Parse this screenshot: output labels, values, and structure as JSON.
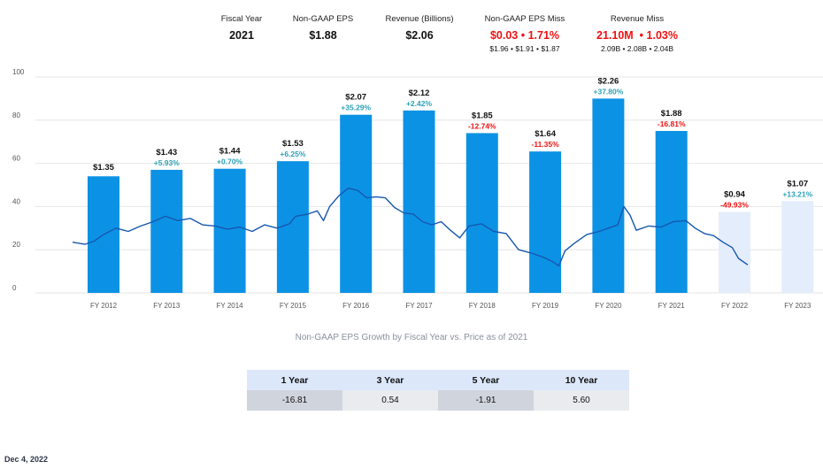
{
  "header": {
    "fiscal_year": {
      "label": "Fiscal Year",
      "value": "2021"
    },
    "eps": {
      "label": "Non-GAAP EPS",
      "value": "$1.88"
    },
    "revenue": {
      "label": "Revenue (Billions)",
      "value": "$2.06"
    },
    "eps_miss": {
      "label": "Non-GAAP EPS Miss",
      "value": "$0.03 • 1.71%",
      "detail": "$1.96 • $1.91 • $1.87"
    },
    "revenue_miss": {
      "label": "Revenue Miss",
      "value": "21.10M  • 1.03%",
      "detail": "2.09B • 2.08B • 2.04B"
    }
  },
  "colors": {
    "bar_actual": "#0c92e4",
    "bar_estimate": "#e4edfb",
    "price_line": "#1657b0",
    "positive": "#2aa1b7",
    "negative": "#ee1111",
    "grid": "#e6e6e6"
  },
  "chart_data": {
    "type": "bar",
    "title": "Non-GAAP EPS Growth by Fiscal Year vs. Price as of 2021",
    "categories": [
      "FY 2012",
      "FY 2013",
      "FY 2014",
      "FY 2015",
      "FY 2016",
      "FY 2017",
      "FY 2018",
      "FY 2019",
      "FY 2020",
      "FY 2021",
      "FY 2022",
      "FY 2023"
    ],
    "ylim": [
      0,
      100
    ],
    "yticks": [
      "0",
      "20",
      "40",
      "60",
      "80",
      "100"
    ],
    "grid": true,
    "series": [
      {
        "values": [
          54,
          57,
          57.5,
          61,
          82.5,
          84.5,
          74,
          65.5,
          90,
          75,
          37.5,
          42.5
        ],
        "eps_labels": [
          "$1.35",
          "$1.43",
          "$1.44",
          "$1.53",
          "$2.07",
          "$2.12",
          "$1.85",
          "$1.64",
          "$2.26",
          "$1.88",
          "$0.94",
          "$1.07"
        ],
        "growth_labels": [
          "",
          "+5.93%",
          "+0.70%",
          "+6.25%",
          "+35.29%",
          "+2.42%",
          "-12.74%",
          "-11.35%",
          "+37.80%",
          "-16.81%",
          "-49.93%",
          "+13.21%"
        ],
        "estimate": [
          false,
          false,
          false,
          false,
          false,
          false,
          false,
          false,
          false,
          false,
          true,
          true
        ]
      },
      {
        "type": "line",
        "points": [
          [
            0,
            23.5
          ],
          [
            0.2,
            22.5
          ],
          [
            0.35,
            24
          ],
          [
            0.5,
            27
          ],
          [
            0.7,
            30
          ],
          [
            0.9,
            28.5
          ],
          [
            1.1,
            31
          ],
          [
            1.3,
            33
          ],
          [
            1.5,
            35.5
          ],
          [
            1.7,
            33.5
          ],
          [
            1.9,
            34.5
          ],
          [
            2.1,
            31.5
          ],
          [
            2.3,
            31
          ],
          [
            2.5,
            29.5
          ],
          [
            2.7,
            30.5
          ],
          [
            2.9,
            28.5
          ],
          [
            3.1,
            31.5
          ],
          [
            3.3,
            30
          ],
          [
            3.5,
            32
          ],
          [
            3.6,
            35.5
          ],
          [
            3.8,
            36.5
          ],
          [
            3.95,
            38
          ],
          [
            4.05,
            33.5
          ],
          [
            4.15,
            40
          ],
          [
            4.3,
            45
          ],
          [
            4.45,
            48.5
          ],
          [
            4.6,
            47.5
          ],
          [
            4.75,
            44
          ],
          [
            4.9,
            44.5
          ],
          [
            5.05,
            44
          ],
          [
            5.2,
            39.5
          ],
          [
            5.35,
            37
          ],
          [
            5.5,
            36.5
          ],
          [
            5.65,
            33
          ],
          [
            5.8,
            31.5
          ],
          [
            5.95,
            33
          ],
          [
            6.1,
            29
          ],
          [
            6.25,
            25.5
          ],
          [
            6.4,
            31
          ],
          [
            6.6,
            32
          ],
          [
            6.8,
            28.5
          ],
          [
            7.0,
            27.5
          ],
          [
            7.2,
            20
          ],
          [
            7.4,
            18.5
          ],
          [
            7.6,
            16.5
          ],
          [
            7.75,
            14.5
          ],
          [
            7.85,
            12.5
          ],
          [
            7.95,
            19.5
          ],
          [
            8.1,
            23
          ],
          [
            8.3,
            27
          ],
          [
            8.5,
            28.5
          ],
          [
            8.65,
            30
          ],
          [
            8.8,
            31.5
          ],
          [
            8.9,
            40
          ],
          [
            9.0,
            36
          ],
          [
            9.1,
            29
          ],
          [
            9.3,
            31
          ],
          [
            9.5,
            30.5
          ],
          [
            9.7,
            33
          ],
          [
            9.9,
            33.5
          ],
          [
            10.05,
            30
          ],
          [
            10.2,
            27.5
          ],
          [
            10.35,
            26.5
          ],
          [
            10.5,
            23.5
          ],
          [
            10.65,
            21
          ],
          [
            10.75,
            16
          ],
          [
            10.9,
            13
          ]
        ]
      }
    ]
  },
  "growth_table": {
    "headers": [
      "1 Year",
      "3 Year",
      "5 Year",
      "10 Year"
    ],
    "values": [
      "-16.81",
      "0.54",
      "-1.91",
      "5.60"
    ]
  },
  "date": "Dec 4, 2022"
}
